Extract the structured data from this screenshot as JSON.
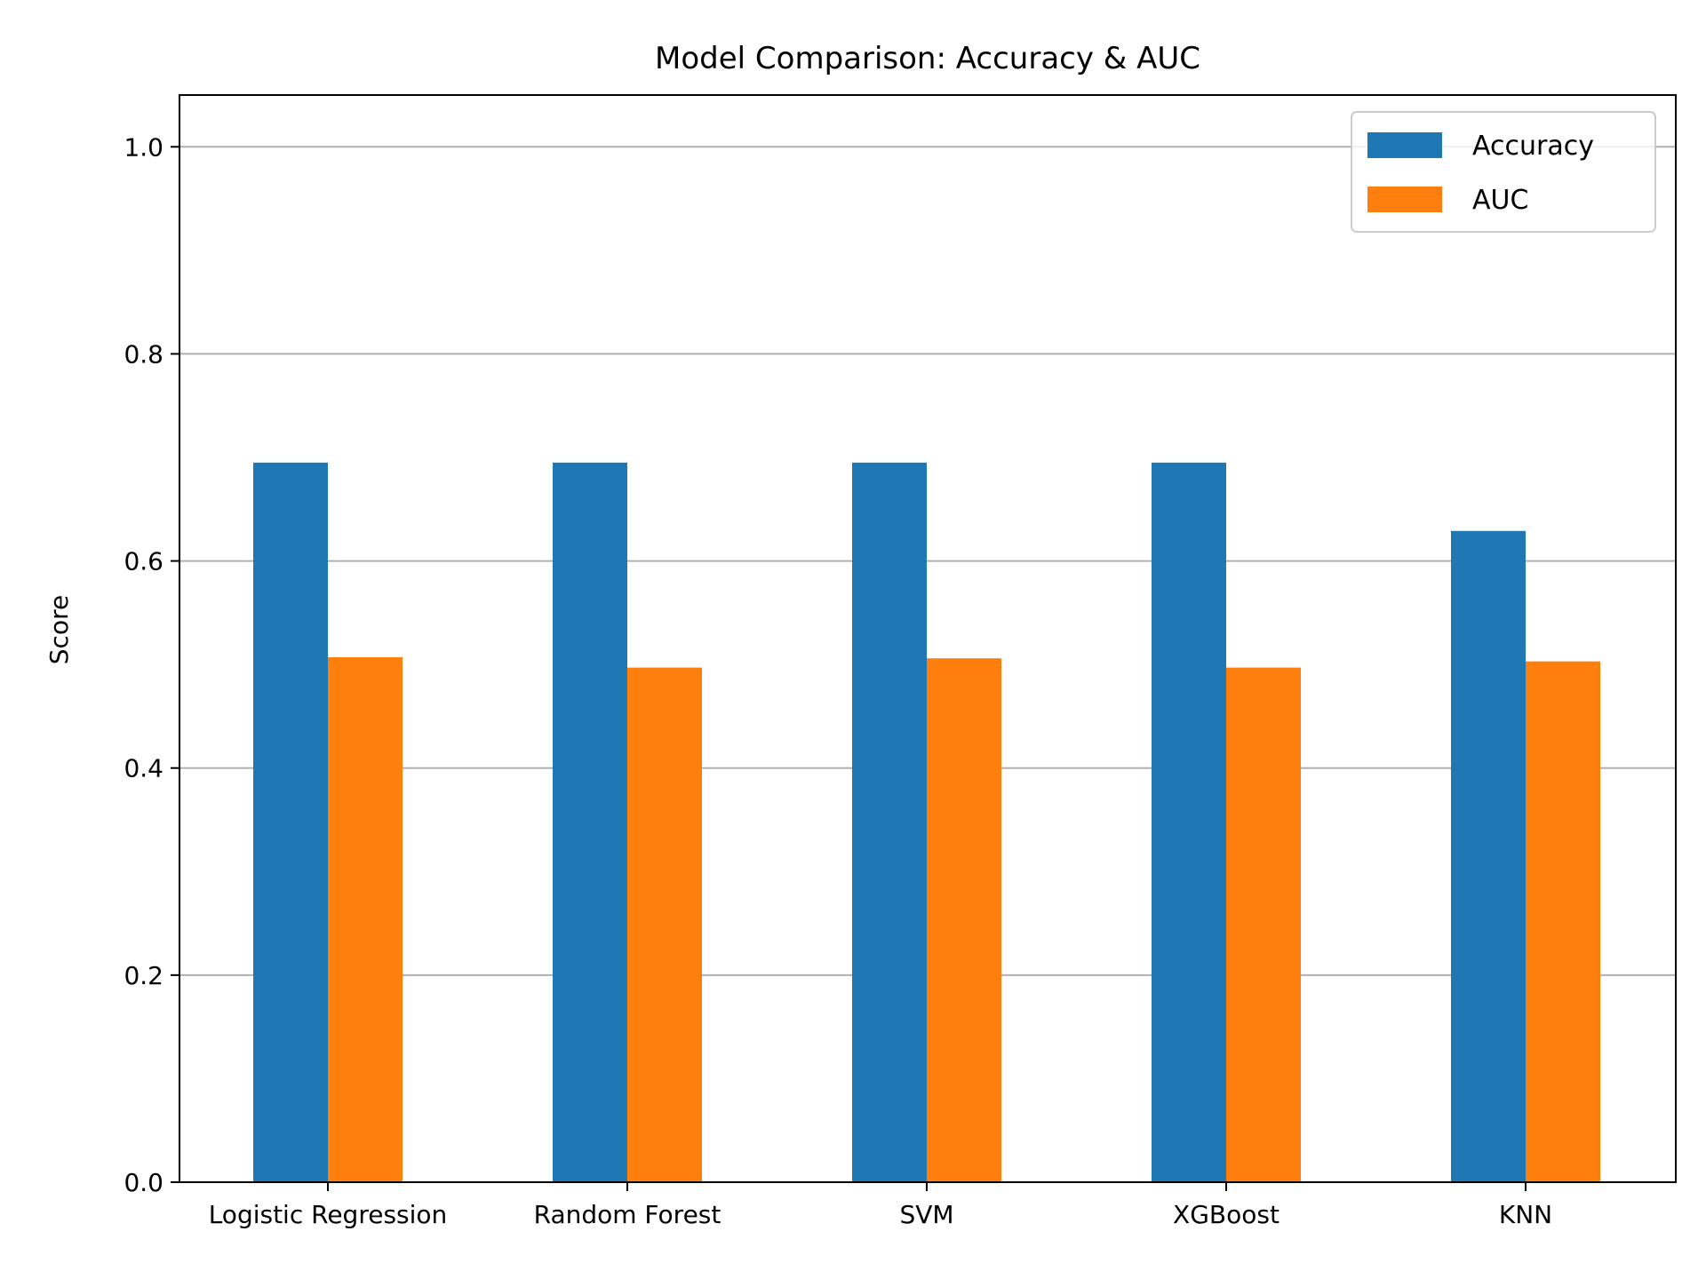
{
  "chart_data": {
    "type": "bar",
    "title": "Model Comparison: Accuracy & AUC",
    "xlabel": "",
    "ylabel": "Score",
    "categories": [
      "Logistic Regression",
      "Random Forest",
      "SVM",
      "XGBoost",
      "KNN"
    ],
    "series": [
      {
        "name": "Accuracy",
        "color": "#1f77b4",
        "values": [
          0.695,
          0.695,
          0.695,
          0.695,
          0.629
        ]
      },
      {
        "name": "AUC",
        "color": "#ff7f0e",
        "values": [
          0.507,
          0.497,
          0.506,
          0.497,
          0.503
        ]
      }
    ],
    "ylim": [
      0,
      1.05
    ],
    "yticks": [
      "0.0",
      "0.2",
      "0.4",
      "0.6",
      "0.8",
      "1.0"
    ],
    "grid": "y",
    "legend_position": "top-right"
  }
}
